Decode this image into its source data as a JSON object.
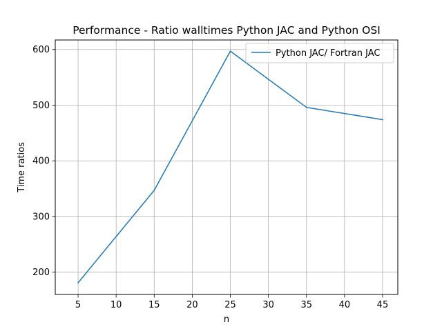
{
  "chart_data": {
    "type": "line",
    "title": "Performance - Ratio walltimes Python JAC and Python OSI",
    "xlabel": "n",
    "ylabel": "Time ratios",
    "x": [
      5,
      15,
      25,
      35,
      45
    ],
    "series": [
      {
        "name": "Python JAC/ Fortran JAC",
        "color": "#1f77b4",
        "values": [
          181,
          347,
          597,
          496,
          474
        ]
      }
    ],
    "xlim": [
      2,
      47
    ],
    "ylim": [
      160,
      617
    ],
    "xticks": [
      5,
      10,
      15,
      20,
      25,
      30,
      35,
      40,
      45
    ],
    "yticks": [
      200,
      300,
      400,
      500,
      600
    ],
    "grid": true,
    "legend_position": "upper right"
  }
}
